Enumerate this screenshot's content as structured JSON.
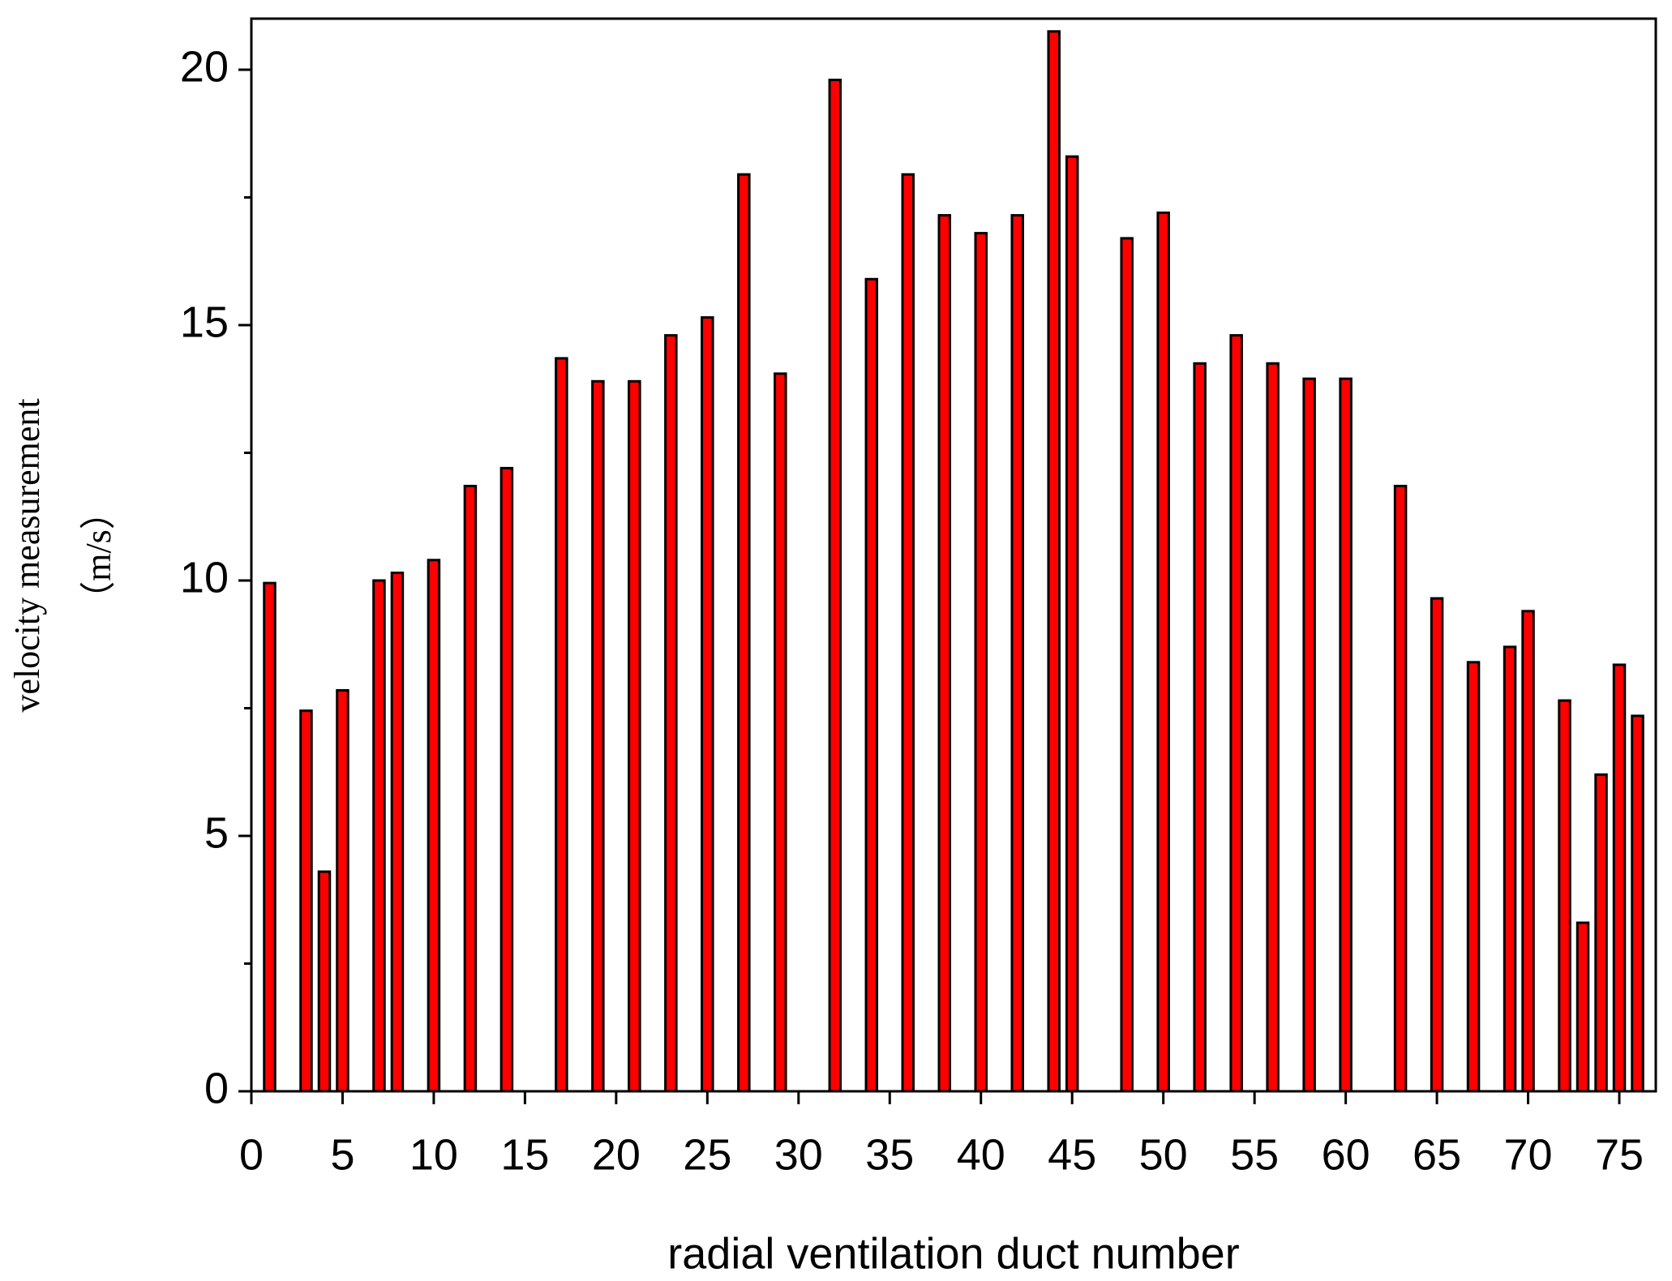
{
  "chart_data": {
    "type": "bar",
    "xlabel": "radial  ventilation duct number",
    "ylabel": "velocity measurement",
    "yunit": "（m/s）",
    "x": [
      1,
      3,
      4,
      5,
      7,
      8,
      10,
      12,
      14,
      17,
      19,
      21,
      23,
      25,
      27,
      29,
      32,
      34,
      36,
      38,
      40,
      42,
      44,
      45,
      48,
      50,
      52,
      54,
      56,
      58,
      60,
      63,
      65,
      67,
      69,
      70,
      72,
      73,
      74,
      75,
      76
    ],
    "values": [
      9.95,
      7.45,
      4.3,
      7.85,
      10.0,
      10.15,
      10.4,
      11.85,
      12.2,
      14.35,
      13.9,
      13.9,
      14.8,
      15.15,
      17.95,
      14.05,
      19.8,
      15.9,
      17.95,
      17.15,
      16.8,
      17.15,
      20.75,
      18.3,
      16.7,
      17.2,
      14.25,
      14.8,
      14.25,
      13.95,
      13.95,
      11.85,
      9.65,
      8.4,
      8.7,
      9.4,
      7.65,
      3.3,
      6.2,
      8.35,
      7.35
    ],
    "color": "#ff0000",
    "xlim": [
      0,
      77
    ],
    "xticks": [
      0,
      5,
      10,
      15,
      20,
      25,
      30,
      35,
      40,
      45,
      50,
      55,
      60,
      65,
      70,
      75
    ],
    "ylim": [
      0,
      21
    ],
    "yticks": [
      0,
      5,
      10,
      15,
      20
    ]
  }
}
